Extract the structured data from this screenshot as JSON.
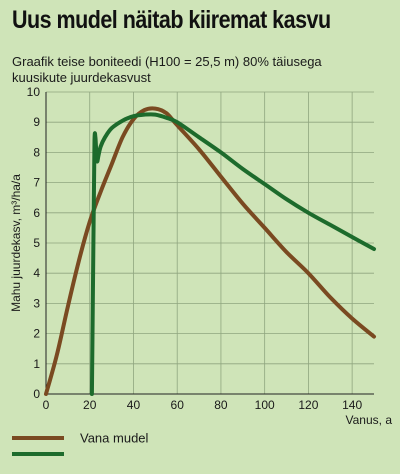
{
  "chart_data": {
    "type": "line",
    "title": "Uus mudel näitab kiiremat kasvu",
    "subtitle": "Graafik teise boniteedi (H100 = 25,5 m) 80% täiusega kuusikute juurdekasvust",
    "xlabel": "Vanus, a",
    "ylabel": "Mahu juurdekasv, m³/ha/a",
    "xlim": [
      0,
      150
    ],
    "ylim": [
      0,
      10
    ],
    "xticks": [
      0,
      20,
      40,
      60,
      80,
      100,
      120,
      140
    ],
    "yticks": [
      0,
      1,
      2,
      3,
      4,
      5,
      6,
      7,
      8,
      9,
      10
    ],
    "grid": true,
    "legend_position": "bottom-left",
    "series": [
      {
        "name": "Vana mudel",
        "color": "#7a4a21",
        "x": [
          0,
          5,
          10,
          15,
          20,
          25,
          30,
          35,
          40,
          45,
          50,
          55,
          60,
          70,
          80,
          90,
          100,
          110,
          120,
          130,
          140,
          150
        ],
        "y": [
          0,
          1.3,
          2.9,
          4.4,
          5.7,
          6.7,
          7.6,
          8.5,
          9.1,
          9.4,
          9.45,
          9.3,
          8.9,
          8.1,
          7.2,
          6.3,
          5.5,
          4.7,
          4.0,
          3.2,
          2.5,
          1.9
        ]
      },
      {
        "name": "",
        "color": "#1d6b2c",
        "x": [
          21,
          21.4,
          21.8,
          22.2,
          22.6,
          23,
          23.4,
          24,
          25,
          27,
          30,
          35,
          40,
          45,
          50,
          55,
          60,
          70,
          80,
          90,
          100,
          110,
          120,
          130,
          140,
          150
        ],
        "y": [
          0,
          3,
          6,
          8.4,
          8.5,
          8.0,
          7.7,
          7.9,
          8.2,
          8.5,
          8.8,
          9.05,
          9.2,
          9.25,
          9.25,
          9.15,
          9.0,
          8.5,
          8.0,
          7.45,
          6.95,
          6.45,
          6.0,
          5.6,
          5.2,
          4.8
        ]
      }
    ]
  }
}
